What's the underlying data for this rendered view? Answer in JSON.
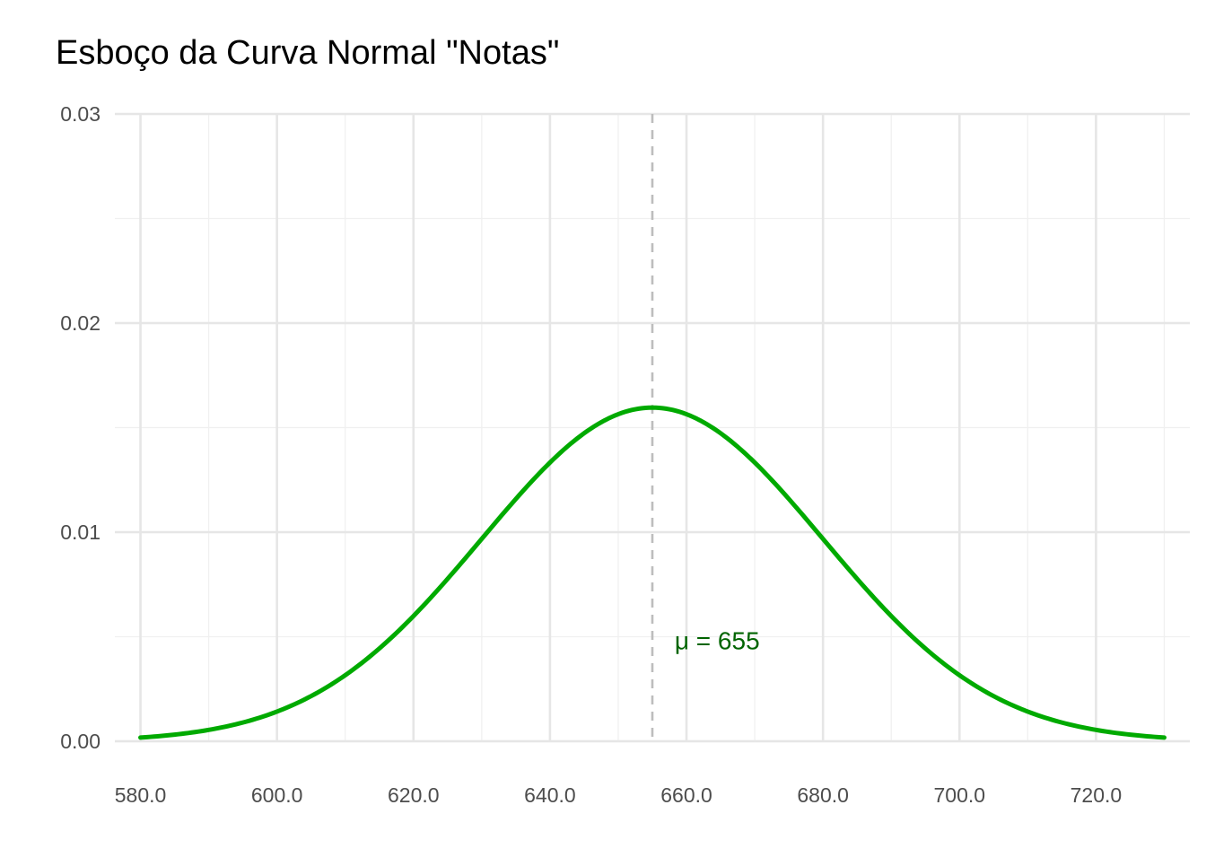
{
  "chart_data": {
    "type": "line",
    "title": "Esboço da Curva Normal \"Notas\"",
    "xlabel": "",
    "ylabel": "",
    "xlim": [
      576.25,
      733.75
    ],
    "ylim": [
      0,
      0.03
    ],
    "x_ticks": [
      580,
      600,
      620,
      640,
      660,
      680,
      700,
      720
    ],
    "x_tick_labels": [
      "580.0",
      "600.0",
      "620.0",
      "640.0",
      "660.0",
      "680.0",
      "700.0",
      "720.0"
    ],
    "y_ticks": [
      0,
      0.01,
      0.02,
      0.03
    ],
    "y_tick_labels": [
      "0.00",
      "0.01",
      "0.02",
      "0.03"
    ],
    "grid": true,
    "series": [
      {
        "distribution": "normal",
        "mean": 655,
        "sd": 25,
        "x_range": [
          580,
          730
        ],
        "color": "#00aa00"
      }
    ],
    "reference_line": {
      "x": 655,
      "style": "dashed",
      "color": "#bdbdbd"
    },
    "annotation": {
      "text": "μ = 655",
      "x": 664.5,
      "y": 0.0044,
      "color": "#006400"
    }
  }
}
